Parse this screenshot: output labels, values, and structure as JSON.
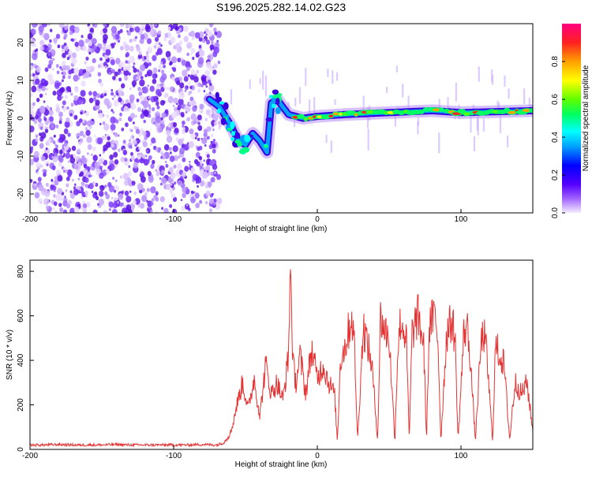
{
  "title": "S196.2025.282.14.02.G23",
  "chart_data": [
    {
      "type": "heatmap",
      "title": "S196.2025.282.14.02.G23",
      "xlabel": "Height of straight line (km)",
      "ylabel": "Frequency (Hz)",
      "xlim": [
        -200,
        150
      ],
      "ylim": [
        -25,
        25
      ],
      "xticks": [
        "-200",
        "-100",
        "0",
        "100"
      ],
      "xtick_values": [
        -200,
        -100,
        0,
        100
      ],
      "yticks": [
        "20",
        "10",
        "0",
        "-10",
        "-20"
      ],
      "ytick_values": [
        20,
        10,
        0,
        -10,
        -20
      ],
      "colorbar": {
        "label": "Normalized spectral amplitude",
        "range": [
          0,
          1
        ],
        "ticks": [
          "0.0",
          "0.2",
          "0.4",
          "0.6",
          "0.8"
        ],
        "tick_values": [
          0.0,
          0.2,
          0.4,
          0.6,
          0.8
        ]
      },
      "noise_region_x": [
        -200,
        -68
      ],
      "signal_track": [
        {
          "x": -75,
          "f": 5
        },
        {
          "x": -68,
          "f": 3
        },
        {
          "x": -60,
          "f": -2
        },
        {
          "x": -55,
          "f": -6
        },
        {
          "x": -50,
          "f": -7
        },
        {
          "x": -45,
          "f": -4
        },
        {
          "x": -40,
          "f": -6
        },
        {
          "x": -35,
          "f": -9
        },
        {
          "x": -32,
          "f": 4
        },
        {
          "x": -28,
          "f": 5
        },
        {
          "x": -20,
          "f": 1
        },
        {
          "x": -10,
          "f": 0
        },
        {
          "x": 0,
          "f": 0.5
        },
        {
          "x": 20,
          "f": 1
        },
        {
          "x": 50,
          "f": 1.5
        },
        {
          "x": 80,
          "f": 2
        },
        {
          "x": 100,
          "f": 1.5
        },
        {
          "x": 150,
          "f": 2
        }
      ]
    },
    {
      "type": "line",
      "xlabel": "Height of straight line (km)",
      "ylabel": "SNR (10 * v/v)",
      "xlim": [
        -200,
        150
      ],
      "ylim": [
        0,
        850
      ],
      "xticks": [
        "-200",
        "-100",
        "0",
        "100"
      ],
      "xtick_values": [
        -200,
        -100,
        0,
        100
      ],
      "yticks": [
        "0",
        "200",
        "400",
        "600",
        "800"
      ],
      "ytick_values": [
        0,
        200,
        400,
        600,
        800
      ],
      "color": "#e53333",
      "x": [
        -200,
        -190,
        -180,
        -170,
        -160,
        -150,
        -140,
        -130,
        -120,
        -110,
        -100,
        -90,
        -80,
        -70,
        -65,
        -60,
        -56,
        -52,
        -48,
        -44,
        -40,
        -36,
        -32,
        -28,
        -24,
        -20,
        -19,
        -18,
        -17,
        -15,
        -12,
        -8,
        -4,
        0,
        4,
        8,
        12,
        14,
        16,
        20,
        24,
        26,
        28,
        32,
        34,
        38,
        42,
        44,
        46,
        50,
        54,
        56,
        58,
        62,
        64,
        66,
        70,
        74,
        76,
        78,
        82,
        84,
        86,
        90,
        94,
        96,
        98,
        102,
        104,
        106,
        110,
        114,
        116,
        118,
        122,
        124,
        126,
        130,
        134,
        136,
        138,
        142,
        146,
        150
      ],
      "y": [
        20,
        20,
        22,
        20,
        20,
        20,
        22,
        20,
        20,
        20,
        20,
        20,
        22,
        20,
        30,
        80,
        200,
        300,
        180,
        320,
        150,
        380,
        250,
        300,
        220,
        420,
        800,
        700,
        380,
        300,
        420,
        250,
        450,
        320,
        380,
        300,
        250,
        30,
        400,
        480,
        600,
        450,
        40,
        550,
        500,
        380,
        40,
        600,
        550,
        500,
        40,
        450,
        580,
        500,
        40,
        520,
        600,
        480,
        40,
        560,
        600,
        500,
        40,
        520,
        580,
        480,
        40,
        520,
        560,
        460,
        40,
        480,
        520,
        420,
        40,
        460,
        440,
        380,
        40,
        200,
        300,
        250,
        300,
        80
      ]
    }
  ]
}
